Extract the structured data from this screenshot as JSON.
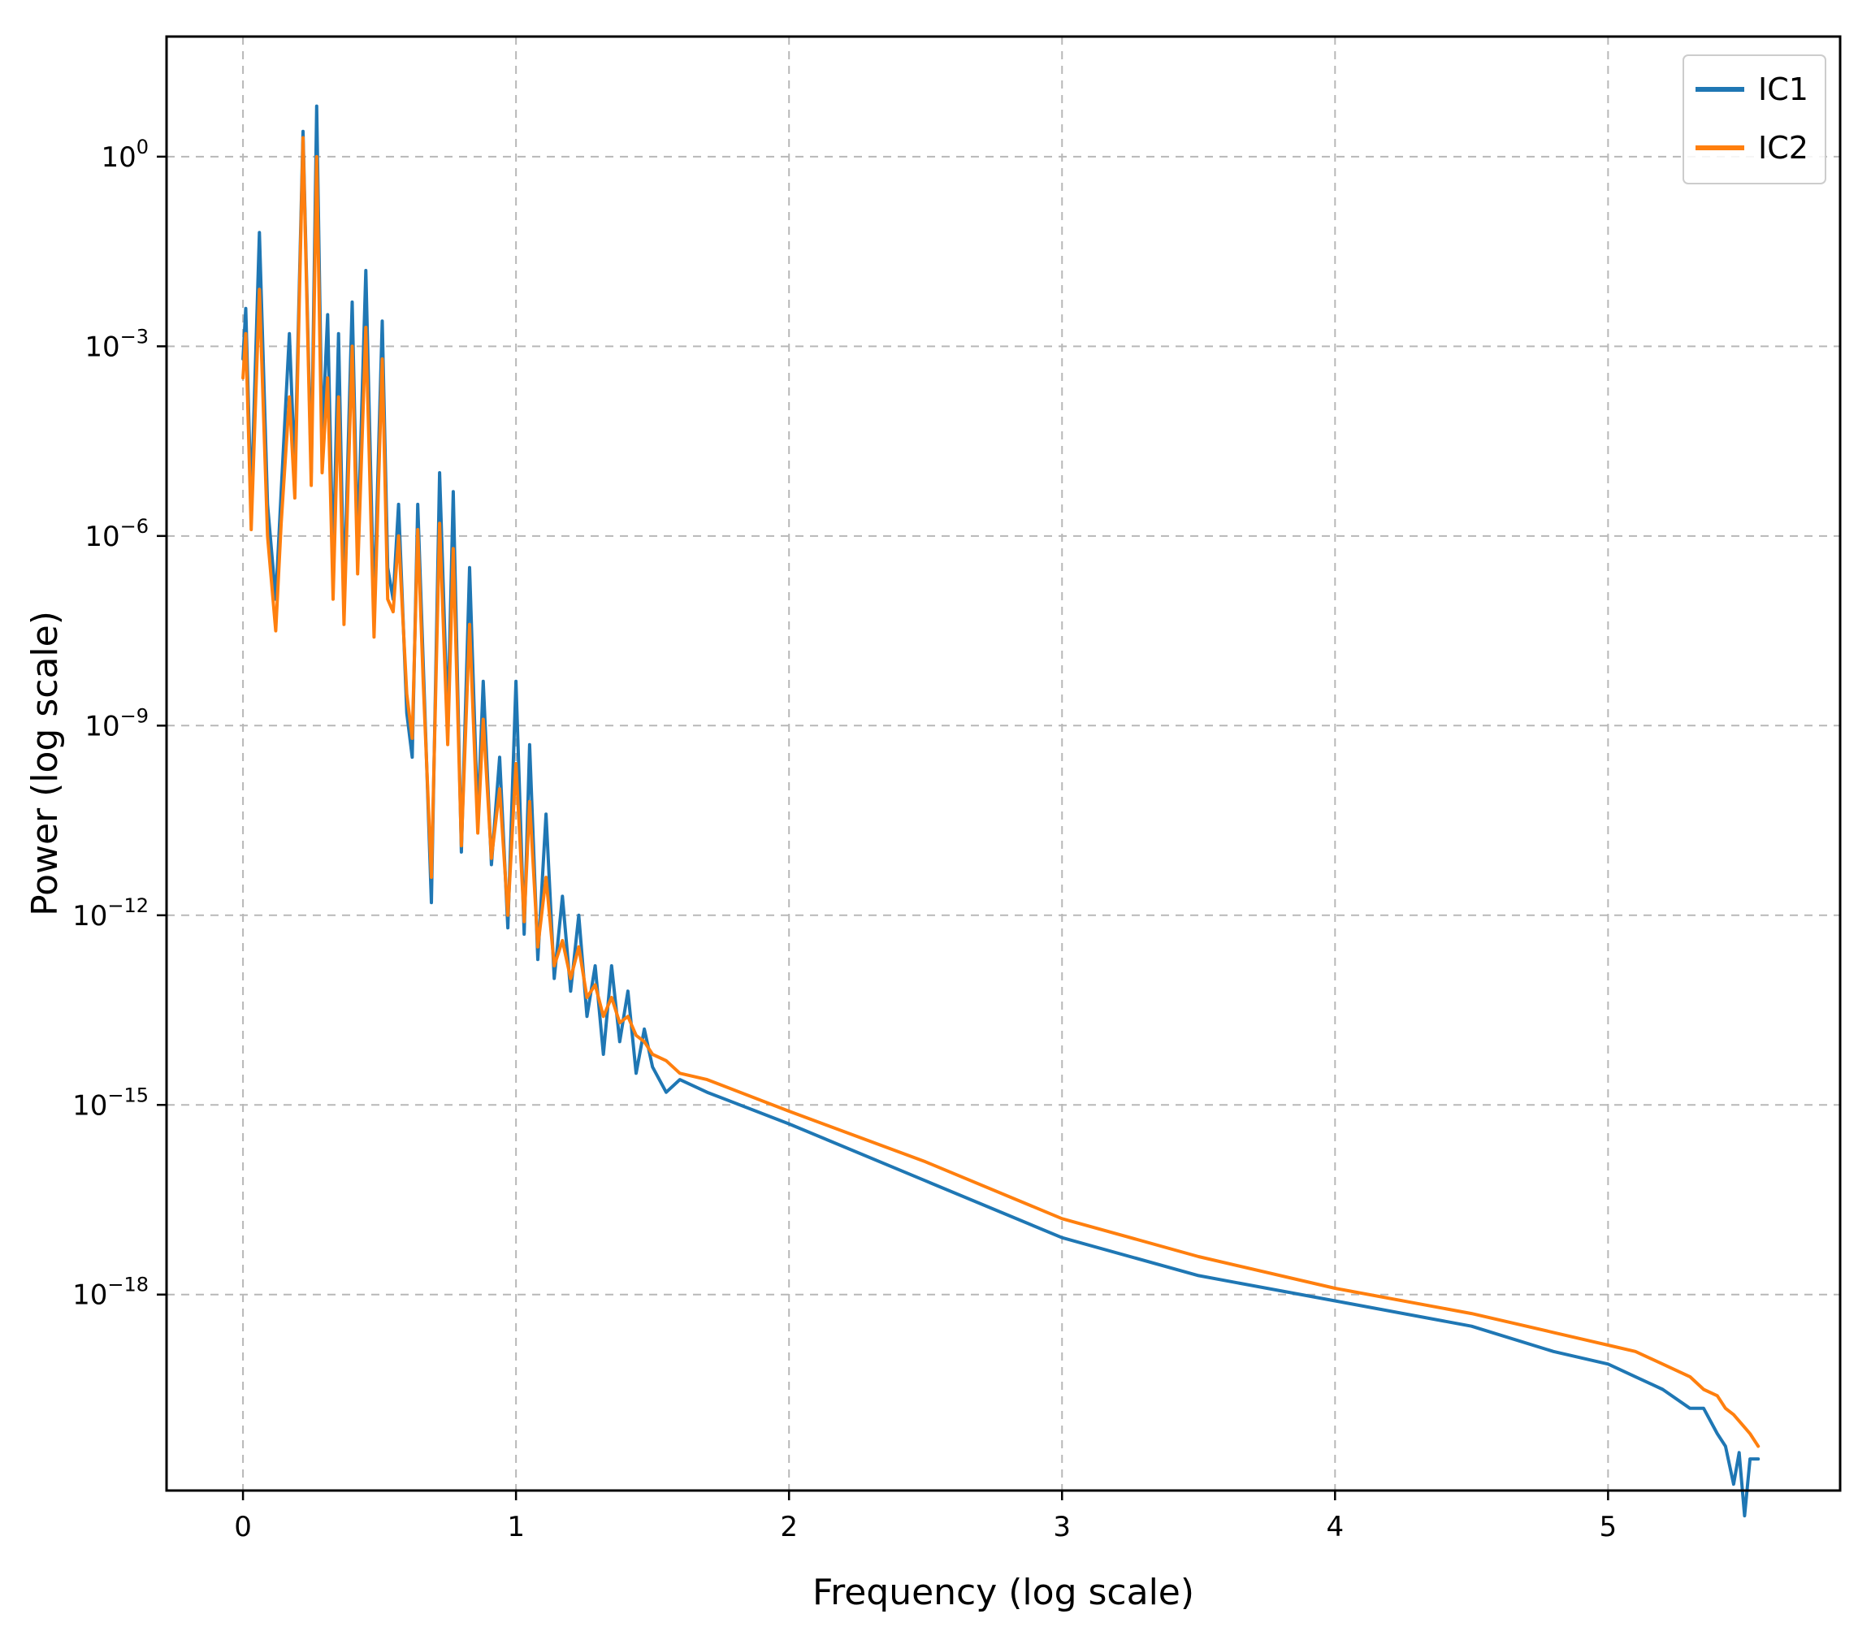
{
  "chart_data": {
    "type": "line",
    "title": "",
    "xlabel": "Frequency (log scale)",
    "ylabel": "Power (log scale)",
    "xlim": [
      -0.28,
      5.85
    ],
    "ylim_log10": [
      -21.1,
      1.9
    ],
    "y_scale": "log",
    "grid": true,
    "legend": "top-right",
    "x_ticks": [
      {
        "value": 0,
        "label": "0"
      },
      {
        "value": 1,
        "label": "1"
      },
      {
        "value": 2,
        "label": "2"
      },
      {
        "value": 3,
        "label": "3"
      },
      {
        "value": 4,
        "label": "4"
      },
      {
        "value": 5,
        "label": "5"
      }
    ],
    "y_ticks": [
      {
        "log": 0,
        "base": "10",
        "exp": "0"
      },
      {
        "log": -3,
        "base": "10",
        "exp": "−3"
      },
      {
        "log": -6,
        "base": "10",
        "exp": "−6"
      },
      {
        "log": -9,
        "base": "10",
        "exp": "−9"
      },
      {
        "log": -12,
        "base": "10",
        "exp": "−12"
      },
      {
        "log": -15,
        "base": "10",
        "exp": "−15"
      },
      {
        "log": -18,
        "base": "10",
        "exp": "−18"
      }
    ],
    "series": [
      {
        "name": "IC1",
        "color": "#1f77b4",
        "x": [
          0.0,
          0.01,
          0.03,
          0.06,
          0.09,
          0.12,
          0.14,
          0.17,
          0.19,
          0.22,
          0.25,
          0.27,
          0.29,
          0.31,
          0.33,
          0.35,
          0.37,
          0.4,
          0.42,
          0.45,
          0.48,
          0.51,
          0.53,
          0.55,
          0.57,
          0.6,
          0.62,
          0.64,
          0.66,
          0.69,
          0.72,
          0.75,
          0.77,
          0.8,
          0.83,
          0.86,
          0.88,
          0.91,
          0.94,
          0.97,
          1.0,
          1.03,
          1.05,
          1.08,
          1.11,
          1.14,
          1.17,
          1.2,
          1.23,
          1.26,
          1.29,
          1.32,
          1.35,
          1.38,
          1.41,
          1.44,
          1.47,
          1.5,
          1.55,
          1.6,
          1.7,
          2.0,
          2.5,
          3.0,
          3.5,
          4.0,
          4.5,
          4.8,
          5.0,
          5.1,
          5.2,
          5.3,
          5.35,
          5.4,
          5.43,
          5.46,
          5.48,
          5.5,
          5.52,
          5.55
        ],
        "y_log10": [
          -3.2,
          -2.4,
          -5.5,
          -1.2,
          -5.5,
          -7.0,
          -5.3,
          -2.8,
          -5.0,
          0.4,
          -5.0,
          0.8,
          -4.5,
          -2.5,
          -6.5,
          -2.8,
          -7.0,
          -2.3,
          -6.2,
          -1.8,
          -7.2,
          -2.6,
          -6.5,
          -7.0,
          -5.5,
          -8.8,
          -9.5,
          -5.5,
          -8.0,
          -11.8,
          -5.0,
          -9.0,
          -5.3,
          -11.0,
          -6.5,
          -10.5,
          -8.3,
          -11.2,
          -9.5,
          -12.2,
          -8.3,
          -12.3,
          -9.3,
          -12.7,
          -10.4,
          -13.0,
          -11.7,
          -13.2,
          -12.0,
          -13.6,
          -12.8,
          -14.2,
          -12.8,
          -14.0,
          -13.2,
          -14.5,
          -13.8,
          -14.4,
          -14.8,
          -14.6,
          -14.8,
          -15.3,
          -16.2,
          -17.1,
          -17.7,
          -18.1,
          -18.5,
          -18.9,
          -19.1,
          -19.3,
          -19.5,
          -19.8,
          -19.8,
          -20.2,
          -20.4,
          -21.0,
          -20.5,
          -21.5,
          -20.6,
          -20.6
        ]
      },
      {
        "name": "IC2",
        "color": "#ff7f0e",
        "x": [
          0.0,
          0.01,
          0.03,
          0.06,
          0.09,
          0.12,
          0.14,
          0.17,
          0.19,
          0.22,
          0.25,
          0.27,
          0.29,
          0.31,
          0.33,
          0.35,
          0.37,
          0.4,
          0.42,
          0.45,
          0.48,
          0.51,
          0.53,
          0.55,
          0.57,
          0.6,
          0.62,
          0.64,
          0.66,
          0.69,
          0.72,
          0.75,
          0.77,
          0.8,
          0.83,
          0.86,
          0.88,
          0.91,
          0.94,
          0.97,
          1.0,
          1.03,
          1.05,
          1.08,
          1.11,
          1.14,
          1.17,
          1.2,
          1.23,
          1.26,
          1.29,
          1.32,
          1.35,
          1.38,
          1.41,
          1.44,
          1.47,
          1.5,
          1.55,
          1.6,
          1.7,
          2.0,
          2.5,
          3.0,
          3.5,
          4.0,
          4.5,
          4.8,
          5.0,
          5.1,
          5.2,
          5.3,
          5.35,
          5.4,
          5.43,
          5.46,
          5.48,
          5.5,
          5.52,
          5.55
        ],
        "y_log10": [
          -3.5,
          -2.8,
          -5.9,
          -2.1,
          -6.0,
          -7.5,
          -5.8,
          -3.8,
          -5.4,
          0.3,
          -5.2,
          0.0,
          -5.0,
          -3.5,
          -7.0,
          -3.8,
          -7.4,
          -3.0,
          -6.6,
          -2.7,
          -7.6,
          -3.2,
          -7.0,
          -7.2,
          -6.0,
          -8.5,
          -9.2,
          -5.9,
          -8.3,
          -11.4,
          -5.8,
          -9.3,
          -6.2,
          -10.9,
          -7.4,
          -10.7,
          -8.9,
          -11.1,
          -10.0,
          -12.0,
          -9.6,
          -12.1,
          -10.2,
          -12.5,
          -11.4,
          -12.8,
          -12.4,
          -13.0,
          -12.5,
          -13.3,
          -13.1,
          -13.6,
          -13.3,
          -13.7,
          -13.6,
          -13.9,
          -14.0,
          -14.2,
          -14.3,
          -14.5,
          -14.6,
          -15.1,
          -15.9,
          -16.8,
          -17.4,
          -17.9,
          -18.3,
          -18.6,
          -18.8,
          -18.9,
          -19.1,
          -19.3,
          -19.5,
          -19.6,
          -19.8,
          -19.9,
          -20.0,
          -20.1,
          -20.2,
          -20.4
        ]
      }
    ]
  }
}
